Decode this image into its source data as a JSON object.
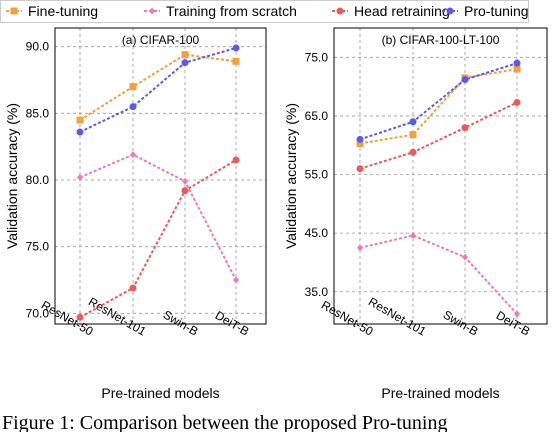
{
  "legend": [
    {
      "name": "Fine-tuning",
      "color": "#f5a03c",
      "marker": "square"
    },
    {
      "name": "Training from scratch",
      "color": "#f07ab8",
      "marker": "diamond"
    },
    {
      "name": "Head retraining",
      "color": "#ee5a5a",
      "marker": "circle"
    },
    {
      "name": "Pro-tuning",
      "color": "#5a5af0",
      "marker": "circle"
    }
  ],
  "caption": "Figure 1: Comparison between the proposed Pro-tuning",
  "chart_data": [
    {
      "type": "line",
      "title": "(a) CIFAR-100",
      "xlabel": "Pre-trained models",
      "ylabel": "Validation accuracy (%)",
      "categories": [
        "ResNet-50",
        "ResNet-101",
        "Swin-B",
        "DeiT-B"
      ],
      "ylim": [
        69.2,
        91.4
      ],
      "yticks": [
        "70.0",
        "75.0",
        "80.0",
        "85.0",
        "90.0"
      ],
      "grid": true,
      "series": [
        {
          "name": "Fine-tuning",
          "values": [
            84.5,
            87.0,
            89.4,
            88.9
          ]
        },
        {
          "name": "Training from scratch",
          "values": [
            80.2,
            81.9,
            79.9,
            72.5
          ]
        },
        {
          "name": "Head retraining",
          "values": [
            69.7,
            71.9,
            79.2,
            81.5
          ]
        },
        {
          "name": "Pro-tuning",
          "values": [
            83.6,
            85.5,
            88.8,
            89.9
          ]
        }
      ]
    },
    {
      "type": "line",
      "title": "(b) CIFAR-100-LT-100",
      "xlabel": "Pre-trained models",
      "ylabel": "Validation accuracy (%)",
      "categories": [
        "ResNet-50",
        "ResNet-101",
        "Swin-B",
        "DeiT-B"
      ],
      "ylim": [
        29.5,
        80.0
      ],
      "yticks": [
        "35.0",
        "45.0",
        "55.0",
        "65.0",
        "75.0"
      ],
      "grid": true,
      "series": [
        {
          "name": "Fine-tuning",
          "values": [
            60.3,
            61.8,
            71.5,
            73.0
          ]
        },
        {
          "name": "Training from scratch",
          "values": [
            42.5,
            44.6,
            40.9,
            31.2
          ]
        },
        {
          "name": "Head retraining",
          "values": [
            56.0,
            58.8,
            63.0,
            67.3
          ]
        },
        {
          "name": "Pro-tuning",
          "values": [
            61.0,
            64.0,
            71.2,
            74.0
          ]
        }
      ]
    }
  ]
}
